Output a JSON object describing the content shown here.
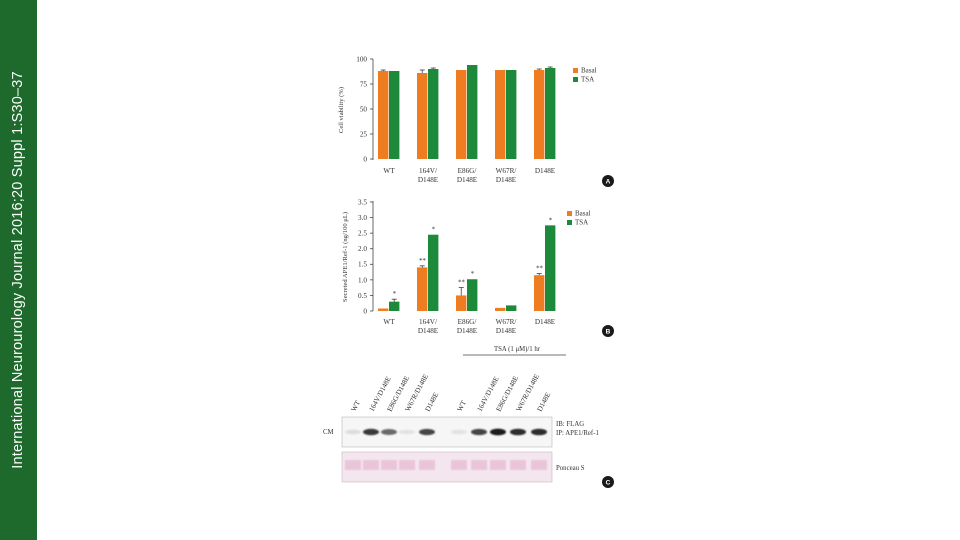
{
  "journal_band": "International Neurourology Journal 2016;20 Suppl 1:S30–37",
  "colors": {
    "band": "#1e6a2c",
    "basal": "#ee7d22",
    "tsa": "#1d8a3b"
  },
  "chart_data": [
    {
      "type": "bar",
      "panel": "A",
      "ylabel": "Cell viability (%)",
      "ylim": [
        0,
        100
      ],
      "yticks": [
        "0",
        "25",
        "50",
        "75",
        "100"
      ],
      "categories": [
        [
          "WT"
        ],
        [
          "164V/",
          "D148E"
        ],
        [
          "E86G/",
          "D148E"
        ],
        [
          "W67R/",
          "D148E"
        ],
        [
          "D148E"
        ]
      ],
      "legend": "right",
      "series": [
        {
          "name": "Basal",
          "values": [
            88,
            86,
            89,
            89,
            89
          ],
          "errors": [
            1,
            3,
            0,
            0,
            1
          ]
        },
        {
          "name": "TSA",
          "values": [
            88,
            90,
            94,
            89,
            91
          ],
          "errors": [
            0,
            1,
            0,
            0,
            1
          ]
        }
      ]
    },
    {
      "type": "bar",
      "panel": "B",
      "ylabel": "Secreted APE1/Ref-1 (ng/100 μL)",
      "ylim": [
        0,
        3.5
      ],
      "yticks": [
        "0",
        "0.5",
        "1.0",
        "1.5",
        "2.0",
        "2.5",
        "3.0",
        "3.5"
      ],
      "categories": [
        [
          "WT"
        ],
        [
          "164V/",
          "D148E"
        ],
        [
          "E86G/",
          "D148E"
        ],
        [
          "W67R/",
          "D148E"
        ],
        [
          "D148E"
        ]
      ],
      "legend": "right",
      "series": [
        {
          "name": "Basal",
          "values": [
            0.08,
            1.4,
            0.5,
            0.1,
            1.15
          ],
          "errors": [
            0,
            0.05,
            0.25,
            0,
            0.05
          ],
          "marks": [
            "",
            "**",
            "**",
            "",
            "**"
          ]
        },
        {
          "name": "TSA",
          "values": [
            0.3,
            2.45,
            1.02,
            0.18,
            2.75
          ],
          "errors": [
            0.08,
            0,
            0,
            0,
            0
          ],
          "marks": [
            "*",
            "*",
            "*",
            "",
            "*"
          ]
        }
      ]
    }
  ],
  "blot": {
    "panel": "C",
    "treatment": "TSA (1 μM)/1 hr",
    "lanes": [
      "WT",
      "164V/D148E",
      "E86G/D148E",
      "W67R/D148E",
      "D148E",
      "WT",
      "164V/D148E",
      "E86G/D148E",
      "W67R/D148E",
      "D148E"
    ],
    "row_label": "CM",
    "right_labels": [
      "IB: FLAG",
      "IP: APE1/Ref-1"
    ],
    "stain_label": "Ponceau S",
    "band_intensity": [
      0.1,
      0.85,
      0.65,
      0.05,
      0.8,
      0.05,
      0.8,
      1.0,
      0.9,
      0.9
    ]
  }
}
